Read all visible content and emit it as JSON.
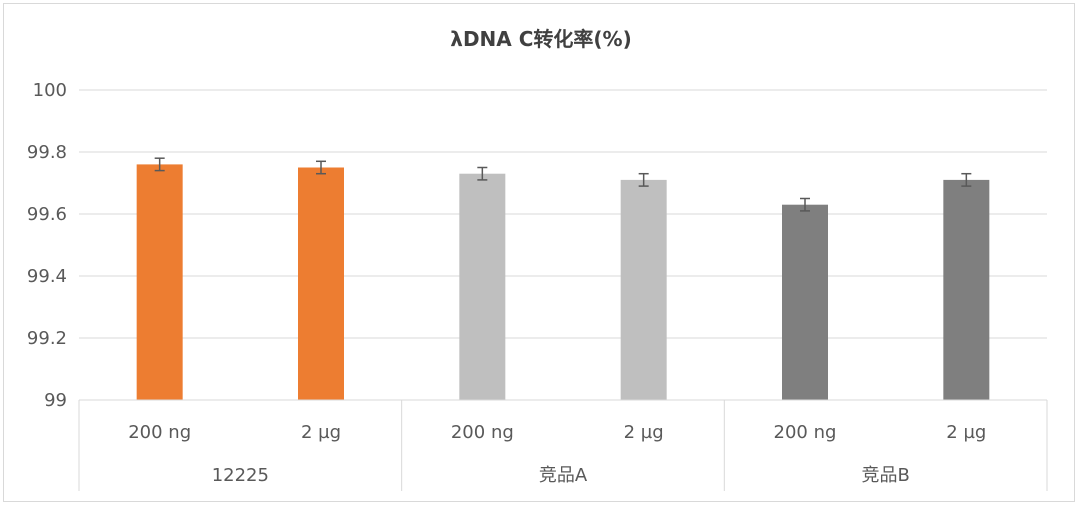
{
  "chart_data": {
    "type": "bar",
    "title": "λDNA C转化率(%)",
    "xlabel": "",
    "ylabel": "",
    "ylim": [
      99,
      100
    ],
    "yticks": [
      "99",
      "99.2",
      "99.4",
      "99.6",
      "99.8",
      "100"
    ],
    "grid": true,
    "groups": [
      {
        "label": "12225",
        "color": "#ed7d31",
        "bars": [
          {
            "label": "200 ng",
            "value": 99.76,
            "error": 0.02
          },
          {
            "label": "2 µg",
            "value": 99.75,
            "error": 0.02
          }
        ]
      },
      {
        "label": "竞品A",
        "color": "#bfbfbf",
        "bars": [
          {
            "label": "200 ng",
            "value": 99.73,
            "error": 0.02
          },
          {
            "label": "2 µg",
            "value": 99.71,
            "error": 0.02
          }
        ]
      },
      {
        "label": "竞品B",
        "color": "#7f7f7f",
        "bars": [
          {
            "label": "200 ng",
            "value": 99.63,
            "error": 0.02
          },
          {
            "label": "2 µg",
            "value": 99.71,
            "error": 0.02
          }
        ]
      }
    ]
  }
}
